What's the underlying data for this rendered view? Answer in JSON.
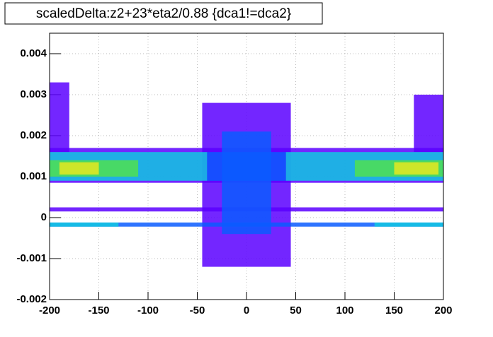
{
  "chart_data": {
    "type": "histogram2d",
    "title": "scaledDelta:z2+23*eta2/0.88 {dca1!=dca2}",
    "xlim": [
      -200,
      200
    ],
    "ylim": [
      -0.002,
      0.0045
    ],
    "xticks": [
      -200,
      -150,
      -100,
      -50,
      0,
      50,
      100,
      150,
      200
    ],
    "yticks": [
      -0.002,
      -0.001,
      0,
      0.001,
      0.002,
      0.003,
      0.004
    ],
    "grid": true,
    "palette": [
      "#5a00ff",
      "#0a5cff",
      "#10c8e0",
      "#50e050",
      "#e8e820"
    ],
    "cells": [
      {
        "x": [
          -200,
          -180
        ],
        "y": [
          0.0016,
          0.0033
        ],
        "z": 1
      },
      {
        "x": [
          170,
          200
        ],
        "y": [
          0.0016,
          0.003
        ],
        "z": 1
      },
      {
        "x": [
          -45,
          45
        ],
        "y": [
          -0.0012,
          0.0028
        ],
        "z": 1
      },
      {
        "x": [
          -200,
          200
        ],
        "y": [
          0.00015,
          0.00025
        ],
        "z": 1
      },
      {
        "x": [
          -200,
          200
        ],
        "y": [
          -0.00022,
          -0.00012
        ],
        "z": 2
      },
      {
        "x": [
          -200,
          -130
        ],
        "y": [
          -0.00022,
          -0.00012
        ],
        "z": 3
      },
      {
        "x": [
          130,
          200
        ],
        "y": [
          -0.00022,
          -0.00012
        ],
        "z": 3
      },
      {
        "x": [
          -200,
          200
        ],
        "y": [
          0.00085,
          0.0017
        ],
        "z": 1
      },
      {
        "x": [
          -200,
          -40
        ],
        "y": [
          0.0009,
          0.0016
        ],
        "z": 3
      },
      {
        "x": [
          40,
          200
        ],
        "y": [
          0.0009,
          0.0016
        ],
        "z": 3
      },
      {
        "x": [
          -40,
          40
        ],
        "y": [
          0.0009,
          0.0016
        ],
        "z": 2
      },
      {
        "x": [
          -25,
          25
        ],
        "y": [
          -0.0004,
          0.0021
        ],
        "z": 2
      },
      {
        "x": [
          -200,
          -110
        ],
        "y": [
          0.001,
          0.0014
        ],
        "z": 4
      },
      {
        "x": [
          110,
          200
        ],
        "y": [
          0.001,
          0.0014
        ],
        "z": 4
      },
      {
        "x": [
          -190,
          -150
        ],
        "y": [
          0.00105,
          0.00135
        ],
        "z": 5
      },
      {
        "x": [
          150,
          195
        ],
        "y": [
          0.00105,
          0.00135
        ],
        "z": 5
      }
    ]
  }
}
